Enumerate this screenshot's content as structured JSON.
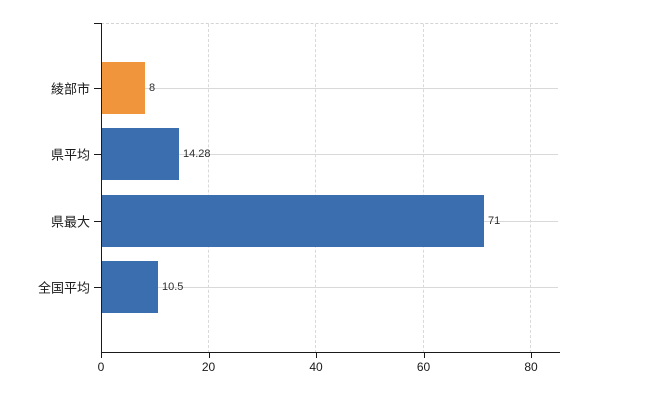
{
  "chart_data": {
    "type": "bar",
    "orientation": "horizontal",
    "title": "",
    "xlabel": "",
    "ylabel": "",
    "categories": [
      "綾部市",
      "県平均",
      "県最大",
      "全国平均"
    ],
    "values": [
      8,
      14.28,
      71,
      10.5
    ],
    "value_labels": [
      "8",
      "14.28",
      "71",
      "10.5"
    ],
    "bar_colors": [
      "#f0953c",
      "#3b6eae",
      "#3b6eae",
      "#3b6eae"
    ],
    "x_ticks": [
      0,
      20,
      40,
      60,
      80
    ],
    "x_tick_labels": [
      "0",
      "20",
      "40",
      "60",
      "80"
    ],
    "xlim": [
      0,
      85
    ],
    "grid": {
      "vertical_style": "dashed",
      "horizontal_row_lines": true,
      "top_border_style": "dashed",
      "legend": "none"
    },
    "colors": {
      "axis": "#1a1a1a",
      "grid": "#d9d9d9",
      "top_border": "#d4d4d4",
      "tick_label": "#1a1a1a",
      "value_label": "#2e2e2e",
      "background": "#ffffff"
    }
  }
}
